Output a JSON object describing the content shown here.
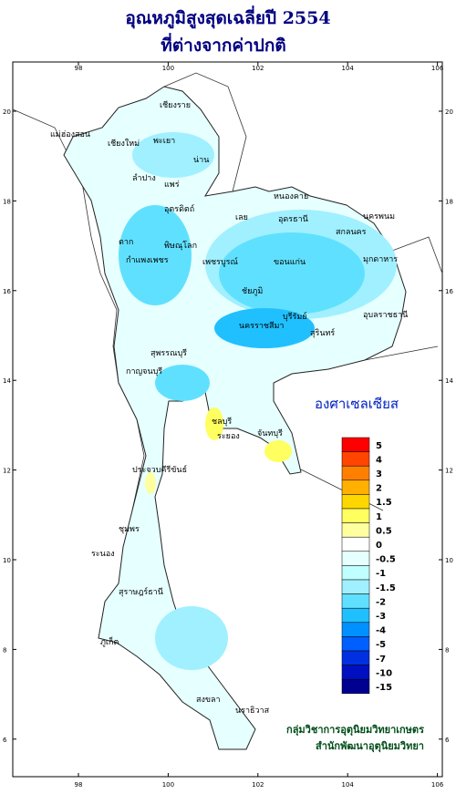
{
  "title": [
    "อุณหภูมิสูงสุดเฉลี่ยปี 2554",
    "ที่ต่างจากค่าปกติ"
  ],
  "axes": {
    "lon": [
      98,
      100,
      102,
      104,
      106
    ],
    "lat": [
      20,
      18,
      16,
      14,
      12,
      10,
      8,
      6
    ]
  },
  "provinces": [
    "เชียงราย",
    "แม่ฮ่องสอน",
    "เชียงใหม่",
    "พะเยา",
    "ลำปาง",
    "น่าน",
    "แพร่",
    "อุตรดิตถ์",
    "ตาก",
    "พิษณุโลก",
    "กำแพงเพชร",
    "เพชรบูรณ์",
    "หนองคาย",
    "อุดรธานี",
    "นครพนม",
    "สกลนคร",
    "มุกดาหาร",
    "ขอนแก่น",
    "เลย",
    "ชัยภูมิ",
    "นครราชสีมา",
    "บุรีรัมย์",
    "สุรินทร์",
    "อุบลราชธานี",
    "กาญจนบุรี",
    "สุพรรณบุรี",
    "ชลบุรี",
    "ระยอง",
    "จันทบุรี",
    "ประจวบคีรีขันธ์",
    "ชุมพร",
    "ระนอง",
    "สุราษฎร์ธานี",
    "ภูเก็ต",
    "สงขลา",
    "นราธิวาส"
  ],
  "legend": {
    "title": "องศาเซลเซียส",
    "items": [
      {
        "value": 5,
        "color": "#ff0000"
      },
      {
        "value": 4,
        "color": "#ff4500"
      },
      {
        "value": 3,
        "color": "#ff8000"
      },
      {
        "value": 2,
        "color": "#ffb000"
      },
      {
        "value": 1.5,
        "color": "#ffd700"
      },
      {
        "value": 1,
        "color": "#ffff60"
      },
      {
        "value": 0.5,
        "color": "#ffffa0"
      },
      {
        "value": 0,
        "color": "#ffffff"
      },
      {
        "value": -0.5,
        "color": "#e6ffff"
      },
      {
        "value": -1,
        "color": "#c0ffff"
      },
      {
        "value": -1.5,
        "color": "#a0f0ff"
      },
      {
        "value": -2,
        "color": "#60e0ff"
      },
      {
        "value": -3,
        "color": "#20c0ff"
      },
      {
        "value": -4,
        "color": "#0090ff"
      },
      {
        "value": -5,
        "color": "#0060ff"
      },
      {
        "value": -7,
        "color": "#0030e0"
      },
      {
        "value": -10,
        "color": "#0010c0"
      },
      {
        "value": -15,
        "color": "#000090"
      }
    ]
  },
  "credit": [
    "กลุ่มวิชาการอุตุนิยมวิทยาเกษตร",
    "สำนักพัฒนาอุตุนิยมวิทยา"
  ]
}
